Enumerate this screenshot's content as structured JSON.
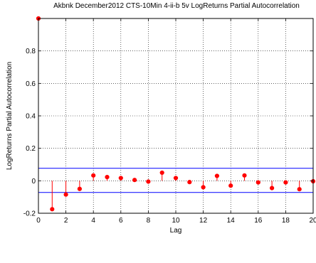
{
  "chart_data": {
    "type": "stem",
    "title": "Akbnk December2012 CTS-10Min 4-ii-b 5v LogReturns Partial Autocorrelation",
    "xlabel": "Lag",
    "ylabel": "LogReturns Partial Autocorrelation",
    "xlim": [
      0,
      20
    ],
    "ylim": [
      -0.2,
      1
    ],
    "xticks": [
      "0",
      "2",
      "4",
      "6",
      "8",
      "10",
      "12",
      "14",
      "16",
      "18",
      "20"
    ],
    "yticks": [
      "-0.2",
      "0",
      "0.2",
      "0.4",
      "0.6",
      "0.8"
    ],
    "grid": true,
    "series": [
      {
        "x": [
          0,
          1,
          2,
          3,
          4,
          5,
          6,
          7,
          8,
          9,
          10,
          11,
          12,
          13,
          14,
          15,
          16,
          17,
          18,
          19,
          20
        ],
        "y": [
          1.0,
          -0.175,
          -0.085,
          -0.05,
          0.033,
          0.023,
          0.017,
          0.005,
          -0.005,
          0.05,
          0.017,
          -0.008,
          -0.04,
          0.03,
          -0.03,
          0.033,
          -0.01,
          -0.045,
          -0.01,
          -0.052,
          -0.003
        ],
        "color": "#ff0000"
      }
    ],
    "confidence_bounds": {
      "upper": 0.077,
      "lower": -0.072,
      "color": "#0000ff"
    }
  }
}
